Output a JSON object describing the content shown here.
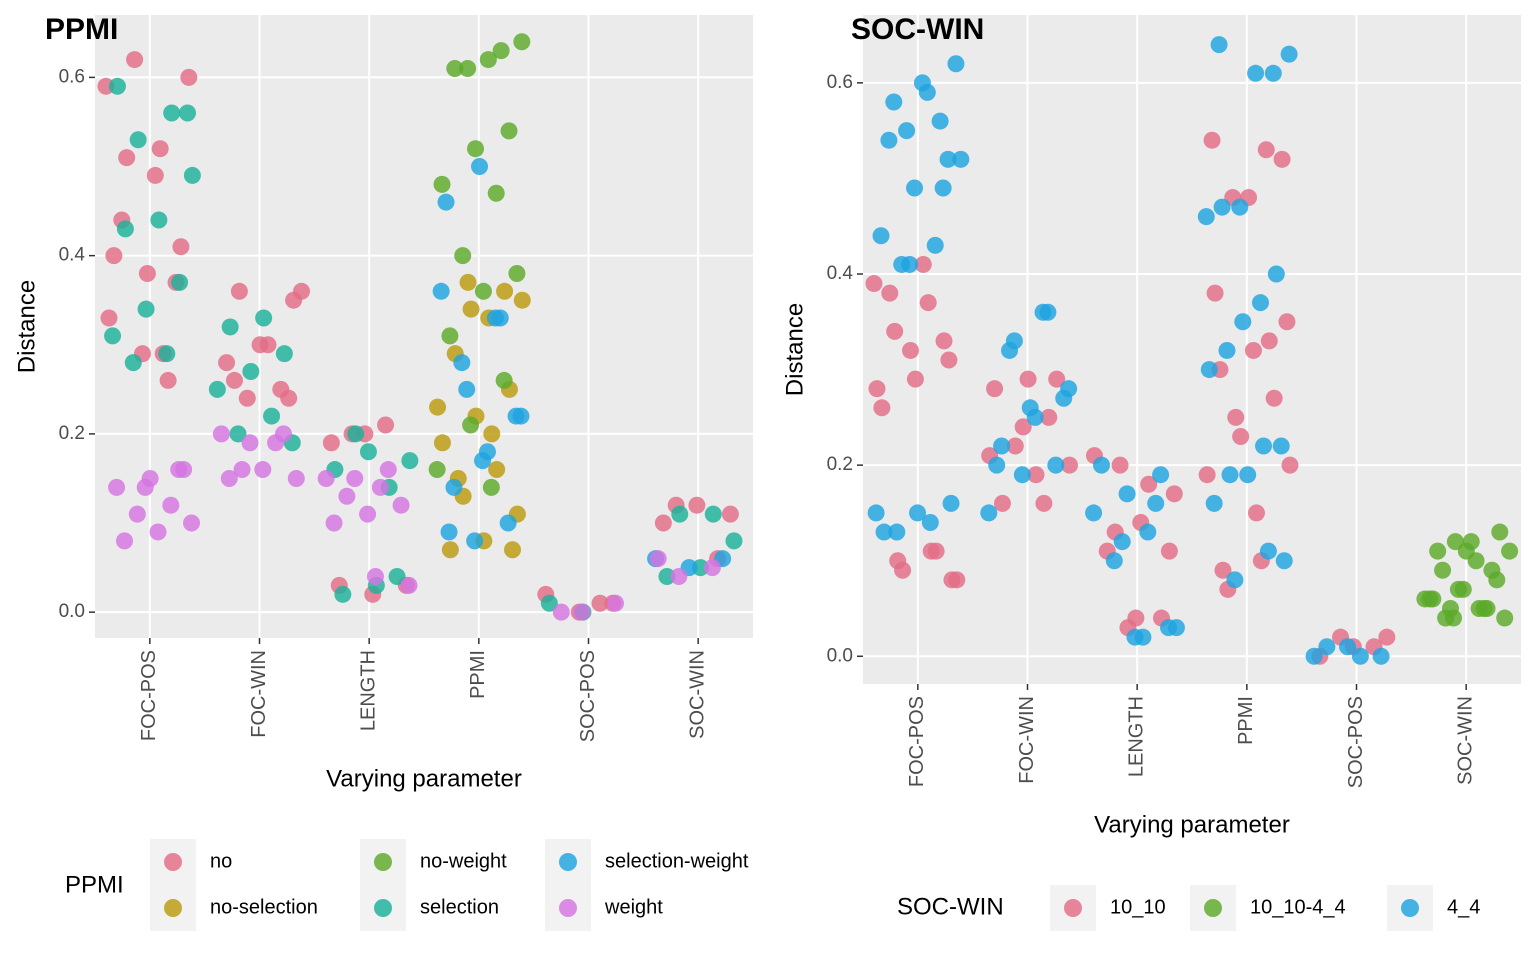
{
  "chart_data": [
    {
      "type": "strip",
      "title": "PPMI",
      "x_label": "Varying parameter",
      "y_label": "Distance",
      "legend_title": "PPMI",
      "categories": [
        "FOC-POS",
        "FOC-WIN",
        "LENGTH",
        "PPMI",
        "SOC-POS",
        "SOC-WIN"
      ],
      "ylim": [
        -0.029,
        0.67
      ],
      "yticks": [
        {
          "value": 0,
          "label": "0.0"
        },
        0.2,
        0.4,
        0.6
      ],
      "grid": true,
      "series": [
        {
          "name": "no",
          "color": "#E36C86",
          "x": [
            "FOC-POS",
            "FOC-POS",
            "FOC-POS",
            "FOC-POS",
            "FOC-POS",
            "FOC-POS",
            "FOC-POS",
            "FOC-POS",
            "FOC-POS",
            "FOC-POS",
            "FOC-POS",
            "FOC-POS",
            "FOC-POS",
            "FOC-POS",
            "FOC-POS",
            "FOC-WIN",
            "FOC-WIN",
            "FOC-WIN",
            "FOC-WIN",
            "FOC-WIN",
            "FOC-WIN",
            "FOC-WIN",
            "FOC-WIN",
            "FOC-WIN",
            "FOC-WIN",
            "LENGTH",
            "LENGTH",
            "LENGTH",
            "LENGTH",
            "LENGTH",
            "LENGTH",
            "LENGTH",
            "SOC-POS",
            "SOC-POS",
            "SOC-POS",
            "SOC-POS",
            "SOC-WIN",
            "SOC-WIN",
            "SOC-WIN",
            "SOC-WIN",
            "SOC-WIN"
          ],
          "values": [
            0.59,
            0.52,
            0.51,
            0.41,
            0.38,
            0.4,
            0.26,
            0.62,
            0.6,
            0.49,
            0.44,
            0.37,
            0.29,
            0.33,
            0.29,
            0.36,
            0.35,
            0.3,
            0.28,
            0.25,
            0.24,
            0.36,
            0.3,
            0.26,
            0.24,
            0.2,
            0.19,
            0.21,
            0.2,
            0.03,
            0.02,
            0.03,
            0.01,
            0.0,
            0.02,
            0.01,
            0.12,
            0.11,
            0.12,
            0.1,
            0.06
          ]
        },
        {
          "name": "no-selection",
          "color": "#BB9A0E",
          "x": [
            "PPMI",
            "PPMI",
            "PPMI",
            "PPMI",
            "PPMI",
            "PPMI",
            "PPMI",
            "PPMI",
            "PPMI",
            "PPMI",
            "PPMI",
            "PPMI",
            "PPMI",
            "PPMI",
            "PPMI",
            "PPMI",
            "PPMI",
            "PPMI"
          ],
          "values": [
            0.37,
            0.35,
            0.33,
            0.29,
            0.25,
            0.22,
            0.19,
            0.16,
            0.13,
            0.11,
            0.08,
            0.07,
            0.36,
            0.34,
            0.23,
            0.2,
            0.15,
            0.07
          ]
        },
        {
          "name": "no-weight",
          "color": "#5BAA2A",
          "x": [
            "PPMI",
            "PPMI",
            "PPMI",
            "PPMI",
            "PPMI",
            "PPMI",
            "PPMI",
            "PPMI",
            "PPMI",
            "PPMI",
            "PPMI",
            "PPMI",
            "PPMI",
            "PPMI",
            "PPMI",
            "PPMI",
            "PPMI"
          ],
          "values": [
            0.63,
            0.61,
            0.64,
            0.62,
            0.61,
            0.54,
            0.52,
            0.48,
            0.47,
            0.4,
            0.38,
            0.36,
            0.31,
            0.26,
            0.21,
            0.16,
            0.14
          ]
        },
        {
          "name": "selection",
          "color": "#1BB19A",
          "x": [
            "FOC-POS",
            "FOC-POS",
            "FOC-POS",
            "FOC-POS",
            "FOC-POS",
            "FOC-POS",
            "FOC-POS",
            "FOC-POS",
            "FOC-POS",
            "FOC-POS",
            "FOC-POS",
            "FOC-POS",
            "FOC-WIN",
            "FOC-WIN",
            "FOC-WIN",
            "FOC-WIN",
            "FOC-WIN",
            "FOC-WIN",
            "FOC-WIN",
            "FOC-WIN",
            "LENGTH",
            "LENGTH",
            "LENGTH",
            "LENGTH",
            "LENGTH",
            "LENGTH",
            "LENGTH",
            "LENGTH",
            "SOC-POS",
            "SOC-POS",
            "SOC-WIN",
            "SOC-WIN",
            "SOC-WIN",
            "SOC-WIN",
            "SOC-WIN"
          ],
          "values": [
            0.59,
            0.56,
            0.53,
            0.49,
            0.44,
            0.43,
            0.37,
            0.34,
            0.31,
            0.29,
            0.28,
            0.56,
            0.33,
            0.32,
            0.29,
            0.27,
            0.25,
            0.22,
            0.2,
            0.19,
            0.18,
            0.16,
            0.14,
            0.2,
            0.17,
            0.03,
            0.02,
            0.04,
            0.0,
            0.01,
            0.11,
            0.11,
            0.08,
            0.05,
            0.04
          ]
        },
        {
          "name": "selection-weight",
          "color": "#1FA3E0",
          "x": [
            "PPMI",
            "PPMI",
            "PPMI",
            "PPMI",
            "PPMI",
            "PPMI",
            "PPMI",
            "PPMI",
            "PPMI",
            "PPMI",
            "PPMI",
            "PPMI",
            "PPMI",
            "PPMI",
            "PPMI",
            "SOC-WIN",
            "SOC-WIN",
            "SOC-WIN"
          ],
          "values": [
            0.5,
            0.46,
            0.33,
            0.25,
            0.22,
            0.18,
            0.14,
            0.1,
            0.08,
            0.36,
            0.33,
            0.28,
            0.22,
            0.17,
            0.09,
            0.06,
            0.05,
            0.06
          ]
        },
        {
          "name": "weight",
          "color": "#D474E0",
          "x": [
            "FOC-POS",
            "FOC-POS",
            "FOC-POS",
            "FOC-POS",
            "FOC-POS",
            "FOC-POS",
            "FOC-POS",
            "FOC-POS",
            "FOC-POS",
            "FOC-POS",
            "FOC-WIN",
            "FOC-WIN",
            "FOC-WIN",
            "FOC-WIN",
            "FOC-WIN",
            "FOC-WIN",
            "FOC-WIN",
            "FOC-WIN",
            "LENGTH",
            "LENGTH",
            "LENGTH",
            "LENGTH",
            "LENGTH",
            "LENGTH",
            "LENGTH",
            "LENGTH",
            "LENGTH",
            "LENGTH",
            "SOC-POS",
            "SOC-POS",
            "SOC-POS",
            "SOC-WIN",
            "SOC-WIN",
            "SOC-WIN"
          ],
          "values": [
            0.16,
            0.15,
            0.14,
            0.12,
            0.11,
            0.1,
            0.09,
            0.08,
            0.16,
            0.14,
            0.2,
            0.19,
            0.16,
            0.15,
            0.16,
            0.15,
            0.2,
            0.19,
            0.15,
            0.14,
            0.13,
            0.12,
            0.11,
            0.1,
            0.16,
            0.15,
            0.03,
            0.04,
            0.0,
            0.01,
            0.0,
            0.06,
            0.05,
            0.04
          ]
        }
      ]
    },
    {
      "type": "strip",
      "title": "SOC-WIN",
      "x_label": "Varying parameter",
      "y_label": "Distance",
      "legend_title": "SOC-WIN",
      "categories": [
        "FOC-POS",
        "FOC-WIN",
        "LENGTH",
        "PPMI",
        "SOC-POS",
        "SOC-WIN"
      ],
      "ylim": [
        -0.029,
        0.671
      ],
      "yticks": [
        {
          "value": 0,
          "label": "0.0"
        },
        0.2,
        0.4,
        0.6
      ],
      "grid": true,
      "series": [
        {
          "name": "10_10",
          "color": "#E36C86",
          "x": [
            "FOC-POS",
            "FOC-POS",
            "FOC-POS",
            "FOC-POS",
            "FOC-POS",
            "FOC-POS",
            "FOC-POS",
            "FOC-POS",
            "FOC-POS",
            "FOC-POS",
            "FOC-POS",
            "FOC-POS",
            "FOC-POS",
            "FOC-POS",
            "FOC-POS",
            "FOC-POS",
            "FOC-POS",
            "FOC-WIN",
            "FOC-WIN",
            "FOC-WIN",
            "FOC-WIN",
            "FOC-WIN",
            "FOC-WIN",
            "FOC-WIN",
            "FOC-WIN",
            "FOC-WIN",
            "FOC-WIN",
            "FOC-WIN",
            "LENGTH",
            "LENGTH",
            "LENGTH",
            "LENGTH",
            "LENGTH",
            "LENGTH",
            "LENGTH",
            "LENGTH",
            "LENGTH",
            "LENGTH",
            "LENGTH",
            "PPMI",
            "PPMI",
            "PPMI",
            "PPMI",
            "PPMI",
            "PPMI",
            "PPMI",
            "PPMI",
            "PPMI",
            "PPMI",
            "PPMI",
            "PPMI",
            "PPMI",
            "PPMI",
            "PPMI",
            "PPMI",
            "PPMI",
            "PPMI",
            "PPMI",
            "SOC-POS",
            "SOC-POS",
            "SOC-POS",
            "SOC-POS",
            "SOC-POS"
          ],
          "values": [
            0.39,
            0.37,
            0.34,
            0.31,
            0.29,
            0.26,
            0.11,
            0.09,
            0.08,
            0.41,
            0.38,
            0.33,
            0.32,
            0.28,
            0.11,
            0.1,
            0.08,
            0.29,
            0.28,
            0.25,
            0.22,
            0.2,
            0.19,
            0.16,
            0.29,
            0.24,
            0.21,
            0.16,
            0.2,
            0.17,
            0.14,
            0.11,
            0.04,
            0.03,
            0.21,
            0.18,
            0.13,
            0.11,
            0.04,
            0.54,
            0.53,
            0.48,
            0.35,
            0.32,
            0.3,
            0.27,
            0.23,
            0.19,
            0.1,
            0.07,
            0.52,
            0.48,
            0.38,
            0.33,
            0.25,
            0.2,
            0.15,
            0.09,
            0.02,
            0.01,
            0.0,
            0.01,
            0.02
          ]
        },
        {
          "name": "10_10-4_4",
          "color": "#5BAA2A",
          "x": [
            "SOC-WIN",
            "SOC-WIN",
            "SOC-WIN",
            "SOC-WIN",
            "SOC-WIN",
            "SOC-WIN",
            "SOC-WIN",
            "SOC-WIN",
            "SOC-WIN",
            "SOC-WIN",
            "SOC-WIN",
            "SOC-WIN",
            "SOC-WIN",
            "SOC-WIN",
            "SOC-WIN",
            "SOC-WIN",
            "SOC-WIN",
            "SOC-WIN",
            "SOC-WIN",
            "SOC-WIN",
            "SOC-WIN",
            "SOC-WIN"
          ],
          "values": [
            0.12,
            0.11,
            0.1,
            0.09,
            0.08,
            0.07,
            0.06,
            0.05,
            0.05,
            0.04,
            0.12,
            0.11,
            0.09,
            0.07,
            0.06,
            0.05,
            0.04,
            0.13,
            0.11,
            0.06,
            0.05,
            0.04
          ]
        },
        {
          "name": "4_4",
          "color": "#1FA3E0",
          "x": [
            "FOC-POS",
            "FOC-POS",
            "FOC-POS",
            "FOC-POS",
            "FOC-POS",
            "FOC-POS",
            "FOC-POS",
            "FOC-POS",
            "FOC-POS",
            "FOC-POS",
            "FOC-POS",
            "FOC-POS",
            "FOC-POS",
            "FOC-POS",
            "FOC-POS",
            "FOC-POS",
            "FOC-POS",
            "FOC-POS",
            "FOC-POS",
            "FOC-POS",
            "FOC-POS",
            "FOC-WIN",
            "FOC-WIN",
            "FOC-WIN",
            "FOC-WIN",
            "FOC-WIN",
            "FOC-WIN",
            "FOC-WIN",
            "FOC-WIN",
            "FOC-WIN",
            "FOC-WIN",
            "FOC-WIN",
            "FOC-WIN",
            "FOC-WIN",
            "LENGTH",
            "LENGTH",
            "LENGTH",
            "LENGTH",
            "LENGTH",
            "LENGTH",
            "LENGTH",
            "LENGTH",
            "LENGTH",
            "LENGTH",
            "LENGTH",
            "LENGTH",
            "PPMI",
            "PPMI",
            "PPMI",
            "PPMI",
            "PPMI",
            "PPMI",
            "PPMI",
            "PPMI",
            "PPMI",
            "PPMI",
            "PPMI",
            "PPMI",
            "PPMI",
            "PPMI",
            "PPMI",
            "PPMI",
            "PPMI",
            "PPMI",
            "PPMI",
            "PPMI",
            "SOC-POS",
            "SOC-POS",
            "SOC-POS",
            "SOC-POS",
            "SOC-POS"
          ],
          "values": [
            0.56,
            0.55,
            0.52,
            0.59,
            0.58,
            0.52,
            0.49,
            0.44,
            0.43,
            0.41,
            0.62,
            0.6,
            0.54,
            0.49,
            0.41,
            0.15,
            0.14,
            0.13,
            0.16,
            0.15,
            0.13,
            0.36,
            0.33,
            0.28,
            0.25,
            0.22,
            0.2,
            0.19,
            0.15,
            0.36,
            0.32,
            0.27,
            0.26,
            0.2,
            0.19,
            0.17,
            0.15,
            0.13,
            0.1,
            0.03,
            0.02,
            0.2,
            0.16,
            0.12,
            0.03,
            0.02,
            0.64,
            0.61,
            0.47,
            0.46,
            0.37,
            0.32,
            0.22,
            0.19,
            0.16,
            0.11,
            0.08,
            0.63,
            0.61,
            0.47,
            0.4,
            0.35,
            0.3,
            0.22,
            0.19,
            0.1,
            0.0,
            0.01,
            0.0,
            0.01,
            0.0
          ]
        }
      ]
    }
  ]
}
